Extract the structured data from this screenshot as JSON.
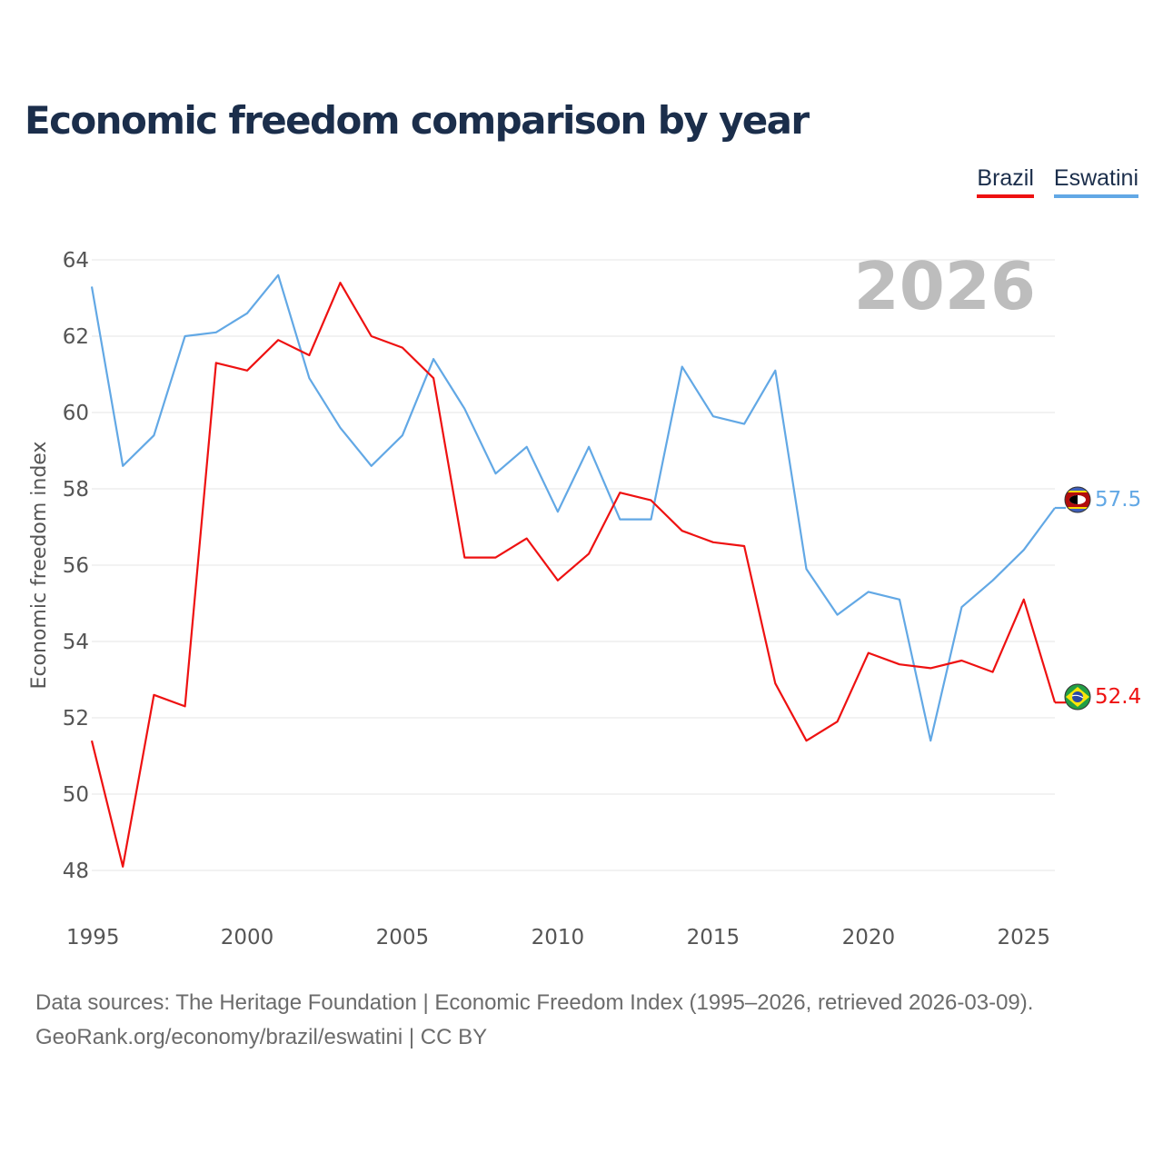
{
  "title": "Economic freedom comparison by year",
  "legend": [
    {
      "name": "Brazil",
      "color": "#ee1111"
    },
    {
      "name": "Eswatini",
      "color": "#62a8e5"
    }
  ],
  "year_label": "2026",
  "source": {
    "line1": "Data sources: The Heritage Foundation | Economic Freedom Index (1995–2026, retrieved 2026-03-09).",
    "line2": "GeoRank.org/economy/brazil/eswatini | CC BY"
  },
  "end_labels": {
    "eswatini": "57.5",
    "brazil": "52.4"
  },
  "flags": {
    "eswatini": "eswatini-flag-icon",
    "brazil": "brazil-flag-icon"
  },
  "chart_data": {
    "type": "line",
    "title": "Economic freedom comparison by year",
    "xlabel": "",
    "ylabel": "Economic freedom index",
    "x": [
      1995,
      1996,
      1997,
      1998,
      1999,
      2000,
      2001,
      2002,
      2003,
      2004,
      2005,
      2006,
      2007,
      2008,
      2009,
      2010,
      2011,
      2012,
      2013,
      2014,
      2015,
      2016,
      2017,
      2018,
      2019,
      2020,
      2021,
      2022,
      2023,
      2024,
      2025,
      2026
    ],
    "xlim": [
      1995,
      2026
    ],
    "ylim": [
      47,
      64.5
    ],
    "xticks": [
      1995,
      2000,
      2005,
      2010,
      2015,
      2020,
      2025
    ],
    "yticks": [
      48,
      50,
      52,
      54,
      56,
      58,
      60,
      62,
      64
    ],
    "grid": true,
    "legend_position": "top-right",
    "series": [
      {
        "name": "Brazil",
        "color": "#ee1111",
        "values": [
          51.4,
          48.1,
          52.6,
          52.3,
          61.3,
          61.1,
          61.9,
          61.5,
          63.4,
          62.0,
          61.7,
          60.9,
          56.2,
          56.2,
          56.7,
          55.6,
          56.3,
          57.9,
          57.7,
          56.9,
          56.6,
          56.5,
          52.9,
          51.4,
          51.9,
          53.7,
          53.4,
          53.3,
          53.5,
          53.2,
          55.1,
          52.4
        ]
      },
      {
        "name": "Eswatini",
        "color": "#62a8e5",
        "values": [
          63.3,
          58.6,
          59.4,
          62.0,
          62.1,
          62.6,
          63.6,
          60.9,
          59.6,
          58.6,
          59.4,
          61.4,
          60.1,
          58.4,
          59.1,
          57.4,
          59.1,
          57.2,
          57.2,
          61.2,
          59.9,
          59.7,
          61.1,
          55.9,
          54.7,
          55.3,
          55.1,
          51.4,
          54.9,
          55.6,
          56.4,
          57.5
        ]
      }
    ]
  }
}
